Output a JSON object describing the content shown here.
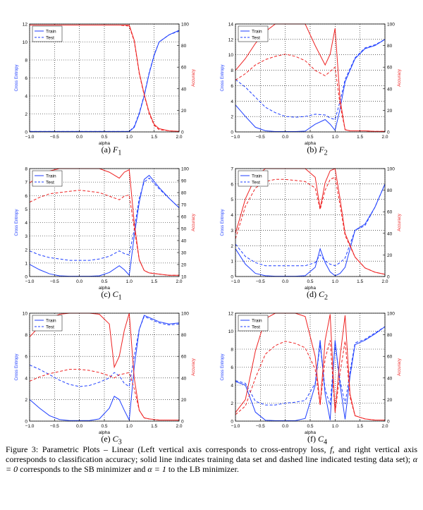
{
  "chart_data": [
    {
      "type": "line",
      "caption_label": "(a)",
      "caption_symbol": "F",
      "caption_sub": "1",
      "xlabel": "alpha",
      "ylabel_left": "Cross Entropy",
      "ylabel_right": "Accuracy",
      "xlim": [
        -1.0,
        2.0
      ],
      "ylim_left": [
        0,
        12
      ],
      "ylim_right": [
        0,
        100
      ],
      "xticks": [
        "−1.0",
        "−0.5",
        "0.0",
        "0.5",
        "1.0",
        "1.5",
        "2.0"
      ],
      "yticks_left": [
        "0",
        "2",
        "4",
        "6",
        "8",
        "10",
        "12"
      ],
      "yticks_right": [
        "0",
        "20",
        "40",
        "60",
        "80",
        "100"
      ],
      "legend": [
        "Train",
        "Test"
      ],
      "legend_position": "upper-left",
      "x": [
        -1.0,
        -0.8,
        -0.6,
        -0.4,
        -0.2,
        0.0,
        0.2,
        0.4,
        0.6,
        0.8,
        1.0,
        1.1,
        1.2,
        1.3,
        1.4,
        1.5,
        1.6,
        1.8,
        2.0
      ],
      "series": [
        {
          "name": "Train",
          "axis": "left",
          "style": "solid",
          "values": [
            0.05,
            0.05,
            0.05,
            0.05,
            0.05,
            0.05,
            0.05,
            0.05,
            0.05,
            0.05,
            0.05,
            0.5,
            2.0,
            4.0,
            6.5,
            8.5,
            10,
            10.8,
            11.3
          ]
        },
        {
          "name": "Test",
          "axis": "left",
          "style": "dashed",
          "values": [
            0.05,
            0.05,
            0.05,
            0.05,
            0.05,
            0.05,
            0.05,
            0.05,
            0.05,
            0.05,
            0.05,
            0.6,
            2.1,
            4.1,
            6.6,
            8.6,
            10,
            10.8,
            11.2
          ]
        },
        {
          "name": "Train",
          "axis": "right",
          "style": "solid",
          "values": [
            99,
            99,
            99,
            99,
            99,
            99,
            99,
            99,
            99,
            99,
            99,
            85,
            55,
            35,
            18,
            7,
            3,
            1,
            0.5
          ]
        },
        {
          "name": "Test",
          "axis": "right",
          "style": "dashed",
          "values": [
            99,
            99,
            99,
            99,
            99,
            99,
            99,
            99,
            99,
            99,
            98,
            84,
            54,
            34,
            17,
            6,
            2,
            1,
            0.5
          ]
        }
      ]
    },
    {
      "type": "line",
      "caption_label": "(b)",
      "caption_symbol": "F",
      "caption_sub": "2",
      "xlabel": "alpha",
      "ylabel_left": "Cross Entropy",
      "ylabel_right": "Accuracy",
      "xlim": [
        -1.0,
        2.0
      ],
      "ylim_left": [
        0,
        14
      ],
      "ylim_right": [
        0,
        100
      ],
      "xticks": [
        "−1.0",
        "−0.5",
        "0.0",
        "0.5",
        "1.0",
        "1.5",
        "2.0"
      ],
      "yticks_left": [
        "0",
        "2",
        "4",
        "6",
        "8",
        "10",
        "12",
        "14"
      ],
      "yticks_right": [
        "0",
        "20",
        "40",
        "60",
        "80",
        "100"
      ],
      "legend": [
        "Train",
        "Test"
      ],
      "legend_position": "upper-left",
      "x": [
        -1.0,
        -0.8,
        -0.6,
        -0.4,
        -0.2,
        0.0,
        0.2,
        0.4,
        0.6,
        0.8,
        0.9,
        1.0,
        1.1,
        1.2,
        1.3,
        1.4,
        1.6,
        1.8,
        2.0
      ],
      "series": [
        {
          "name": "Train",
          "axis": "left",
          "style": "solid",
          "values": [
            3.5,
            2.0,
            0.6,
            0.15,
            0.05,
            0.05,
            0.05,
            0.1,
            1.0,
            1.6,
            1.0,
            0.2,
            3.0,
            6.5,
            8.0,
            9.5,
            10.8,
            11.2,
            12.0
          ]
        },
        {
          "name": "Test",
          "axis": "left",
          "style": "dashed",
          "values": [
            6.8,
            5.8,
            4.5,
            3.2,
            2.5,
            2.0,
            1.9,
            2.0,
            2.3,
            2.2,
            1.8,
            1.6,
            4.0,
            6.8,
            8.2,
            9.6,
            10.9,
            11.3,
            12.0
          ]
        },
        {
          "name": "Train",
          "axis": "right",
          "style": "solid",
          "values": [
            57,
            68,
            82,
            93,
            100,
            100,
            100,
            100,
            80,
            62,
            72,
            96,
            30,
            2,
            1,
            1,
            1,
            0.5,
            0.5
          ]
        },
        {
          "name": "Test",
          "axis": "right",
          "style": "dashed",
          "values": [
            48,
            54,
            62,
            67,
            70,
            72,
            70,
            66,
            57,
            52,
            56,
            60,
            25,
            2,
            1,
            1,
            1,
            0.5,
            0.5
          ]
        }
      ]
    },
    {
      "type": "line",
      "caption_label": "(c)",
      "caption_symbol": "C",
      "caption_sub": "1",
      "xlabel": "alpha",
      "ylabel_left": "Cross Entropy",
      "ylabel_right": "Accuracy",
      "xlim": [
        -1.0,
        2.0
      ],
      "ylim_left": [
        0,
        8
      ],
      "ylim_right": [
        10,
        100
      ],
      "xticks": [
        "−1.0",
        "−0.5",
        "0.0",
        "0.5",
        "1.0",
        "1.5",
        "2.0"
      ],
      "yticks_left": [
        "0",
        "1",
        "2",
        "3",
        "4",
        "5",
        "6",
        "7",
        "8"
      ],
      "yticks_right": [
        "10",
        "20",
        "30",
        "40",
        "50",
        "60",
        "70",
        "80",
        "90",
        "100"
      ],
      "legend": [
        "Train",
        "Test"
      ],
      "legend_position": "upper-left",
      "x": [
        -1.0,
        -0.8,
        -0.6,
        -0.4,
        -0.2,
        0.0,
        0.2,
        0.4,
        0.6,
        0.8,
        0.9,
        1.0,
        1.1,
        1.2,
        1.3,
        1.4,
        1.6,
        1.8,
        2.0
      ],
      "series": [
        {
          "name": "Train",
          "axis": "left",
          "style": "solid",
          "values": [
            0.9,
            0.5,
            0.2,
            0.05,
            0.02,
            0.02,
            0.02,
            0.05,
            0.3,
            0.8,
            0.5,
            0.1,
            3.0,
            5.5,
            7.2,
            7.5,
            6.6,
            5.8,
            5.1
          ]
        },
        {
          "name": "Test",
          "axis": "left",
          "style": "dashed",
          "values": [
            1.9,
            1.6,
            1.4,
            1.3,
            1.2,
            1.2,
            1.2,
            1.3,
            1.5,
            1.9,
            1.7,
            1.6,
            3.5,
            5.8,
            7.0,
            7.3,
            6.5,
            5.8,
            5.1
          ]
        },
        {
          "name": "Train",
          "axis": "right",
          "style": "solid",
          "values": [
            88,
            94,
            98,
            100,
            100,
            100,
            100,
            100,
            97,
            92,
            97,
            99,
            55,
            24,
            15,
            13,
            12,
            11,
            11
          ]
        },
        {
          "name": "Test",
          "axis": "right",
          "style": "dashed",
          "values": [
            72,
            76,
            79,
            80,
            81,
            82,
            81,
            80,
            77,
            74,
            77,
            78,
            50,
            24,
            15,
            13,
            12,
            11,
            11
          ]
        }
      ]
    },
    {
      "type": "line",
      "caption_label": "(d)",
      "caption_symbol": "C",
      "caption_sub": "2",
      "xlabel": "alpha",
      "ylabel_left": "Cross Entropy",
      "ylabel_right": "Accuracy",
      "xlim": [
        -1.0,
        2.0
      ],
      "ylim_left": [
        0,
        7
      ],
      "ylim_right": [
        0,
        100
      ],
      "xticks": [
        "−1.0",
        "−0.5",
        "0.0",
        "0.5",
        "1.0",
        "1.5",
        "2.0"
      ],
      "yticks_left": [
        "0",
        "1",
        "2",
        "3",
        "4",
        "5",
        "6",
        "7"
      ],
      "yticks_right": [
        "0",
        "20",
        "40",
        "60",
        "80",
        "100"
      ],
      "legend": [
        "Train",
        "Test"
      ],
      "legend_position": "upper-left",
      "x": [
        -1.0,
        -0.8,
        -0.6,
        -0.4,
        -0.2,
        0.0,
        0.2,
        0.4,
        0.6,
        0.7,
        0.8,
        0.9,
        1.0,
        1.1,
        1.2,
        1.4,
        1.6,
        1.8,
        2.0
      ],
      "series": [
        {
          "name": "Train",
          "axis": "left",
          "style": "solid",
          "values": [
            1.8,
            0.8,
            0.2,
            0.05,
            0.02,
            0.02,
            0.02,
            0.05,
            0.6,
            1.8,
            0.9,
            0.3,
            0.05,
            0.2,
            0.6,
            3.0,
            3.4,
            4.5,
            6.0
          ]
        },
        {
          "name": "Test",
          "axis": "left",
          "style": "dashed",
          "values": [
            2.1,
            1.3,
            0.9,
            0.7,
            0.7,
            0.7,
            0.7,
            0.7,
            0.9,
            1.4,
            1.0,
            0.8,
            0.7,
            0.9,
            1.2,
            3.0,
            3.3,
            4.5,
            6.0
          ]
        },
        {
          "name": "Train",
          "axis": "right",
          "style": "solid",
          "values": [
            40,
            72,
            92,
            100,
            100,
            100,
            100,
            100,
            92,
            63,
            87,
            98,
            100,
            72,
            40,
            18,
            8,
            4,
            2
          ]
        },
        {
          "name": "Test",
          "axis": "right",
          "style": "dashed",
          "values": [
            35,
            65,
            82,
            88,
            90,
            90,
            89,
            88,
            82,
            62,
            80,
            90,
            92,
            66,
            38,
            18,
            8,
            4,
            2
          ]
        }
      ]
    },
    {
      "type": "line",
      "caption_label": "(e)",
      "caption_symbol": "C",
      "caption_sub": "3",
      "xlabel": "alpha",
      "ylabel_left": "Cross Entropy",
      "ylabel_right": "Accuracy",
      "xlim": [
        -1.0,
        2.0
      ],
      "ylim_left": [
        0,
        10
      ],
      "ylim_right": [
        0,
        100
      ],
      "xticks": [
        "−1.0",
        "−0.5",
        "0.0",
        "0.5",
        "1.0",
        "1.5",
        "2.0"
      ],
      "yticks_left": [
        "0",
        "2",
        "4",
        "6",
        "8",
        "10"
      ],
      "yticks_right": [
        "0",
        "20",
        "40",
        "60",
        "80",
        "100"
      ],
      "legend": [
        "Train",
        "Test"
      ],
      "legend_position": "upper-left",
      "x": [
        -1.0,
        -0.8,
        -0.6,
        -0.4,
        -0.2,
        0.0,
        0.2,
        0.4,
        0.6,
        0.7,
        0.8,
        0.9,
        1.0,
        1.1,
        1.2,
        1.3,
        1.4,
        1.6,
        1.8,
        2.0
      ],
      "series": [
        {
          "name": "Train",
          "axis": "left",
          "style": "solid",
          "values": [
            2.0,
            1.2,
            0.5,
            0.15,
            0.05,
            0.05,
            0.05,
            0.2,
            1.2,
            2.3,
            2.0,
            1.0,
            0.1,
            5.0,
            8.5,
            9.8,
            9.6,
            9.2,
            9.0,
            9.1
          ]
        },
        {
          "name": "Test",
          "axis": "left",
          "style": "dashed",
          "values": [
            5.2,
            4.8,
            4.3,
            3.8,
            3.4,
            3.2,
            3.3,
            3.6,
            4.0,
            4.5,
            4.2,
            3.5,
            3.2,
            6.0,
            8.5,
            9.7,
            9.5,
            9.1,
            8.9,
            9.0
          ]
        },
        {
          "name": "Train",
          "axis": "right",
          "style": "solid",
          "values": [
            78,
            88,
            95,
            99,
            100,
            100,
            100,
            99,
            90,
            50,
            60,
            84,
            100,
            40,
            10,
            3,
            2,
            1,
            1,
            1
          ]
        },
        {
          "name": "Test",
          "axis": "right",
          "style": "dashed",
          "values": [
            37,
            41,
            44,
            46,
            48,
            48,
            47,
            45,
            42,
            40,
            43,
            44,
            45,
            30,
            10,
            3,
            2,
            1,
            1,
            1
          ]
        }
      ]
    },
    {
      "type": "line",
      "caption_label": "(f)",
      "caption_symbol": "C",
      "caption_sub": "4",
      "xlabel": "alpha",
      "ylabel_left": "Cross Entropy",
      "ylabel_right": "Accuracy",
      "xlim": [
        -1.0,
        2.0
      ],
      "ylim_left": [
        0,
        12
      ],
      "ylim_right": [
        0,
        100
      ],
      "xticks": [
        "−1.0",
        "−0.5",
        "0.0",
        "0.5",
        "1.0",
        "1.5",
        "2.0"
      ],
      "yticks_left": [
        "0",
        "2",
        "4",
        "6",
        "8",
        "10",
        "12"
      ],
      "yticks_right": [
        "0",
        "20",
        "40",
        "60",
        "80",
        "100"
      ],
      "legend": [
        "Train",
        "Test"
      ],
      "legend_position": "upper-left",
      "x": [
        -1.0,
        -0.8,
        -0.6,
        -0.4,
        -0.2,
        0.0,
        0.2,
        0.4,
        0.6,
        0.7,
        0.8,
        0.9,
        1.0,
        1.1,
        1.2,
        1.3,
        1.4,
        1.6,
        1.8,
        2.0
      ],
      "series": [
        {
          "name": "Train",
          "axis": "left",
          "style": "solid",
          "values": [
            4.4,
            4.0,
            1.0,
            0.1,
            0.05,
            0.05,
            0.05,
            0.3,
            4.0,
            9.0,
            3.0,
            0.1,
            9.0,
            4.0,
            0.2,
            5.0,
            8.5,
            9.0,
            9.7,
            10.5
          ]
        },
        {
          "name": "Test",
          "axis": "left",
          "style": "dashed",
          "values": [
            4.5,
            4.2,
            2.2,
            1.8,
            1.8,
            2.0,
            2.1,
            2.3,
            4.2,
            8.5,
            3.5,
            1.8,
            8.5,
            4.5,
            1.9,
            5.5,
            8.7,
            9.1,
            9.8,
            10.5
          ]
        },
        {
          "name": "Train",
          "axis": "right",
          "style": "solid",
          "values": [
            8,
            20,
            65,
            95,
            100,
            100,
            100,
            97,
            60,
            15,
            75,
            99,
            8,
            60,
            98,
            25,
            5,
            2,
            1,
            1
          ]
        },
        {
          "name": "Test",
          "axis": "right",
          "style": "dashed",
          "values": [
            6,
            14,
            40,
            62,
            70,
            74,
            72,
            68,
            48,
            15,
            58,
            75,
            8,
            45,
            74,
            22,
            5,
            2,
            1,
            1
          ]
        }
      ]
    }
  ],
  "figure_caption": {
    "line1": "Figure 3:  Parametric Plots – Linear (Left vertical axis corresponds to cross-entropy loss, ",
    "sym_f": "f",
    "line1b": ", and right vertical axis corresponds to classification accuracy; solid line indicates training data set and dashed line indicated testing data set); ",
    "alpha1": "α = 0",
    "mid": " corresponds to the SB minimizer and ",
    "alpha2": "α = 1",
    "end": " to the LB minimizer."
  }
}
